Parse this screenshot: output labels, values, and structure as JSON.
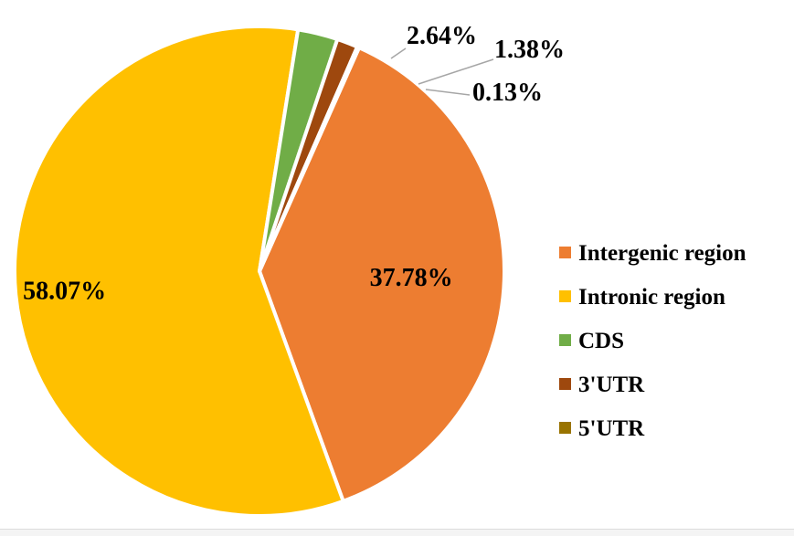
{
  "chart_data": {
    "type": "pie",
    "categories": [
      "Intergenic region",
      "Intronic region",
      "CDS",
      "3'UTR",
      "5'UTR"
    ],
    "values": [
      37.78,
      58.07,
      2.64,
      1.38,
      0.13
    ],
    "labels": [
      "37.78%",
      "58.07%",
      "2.64%",
      "1.38%",
      "0.13%"
    ],
    "colors": [
      "#ED7D31",
      "#FFC000",
      "#70AD47",
      "#9E480E",
      "#997300"
    ],
    "legend_position": "right"
  }
}
